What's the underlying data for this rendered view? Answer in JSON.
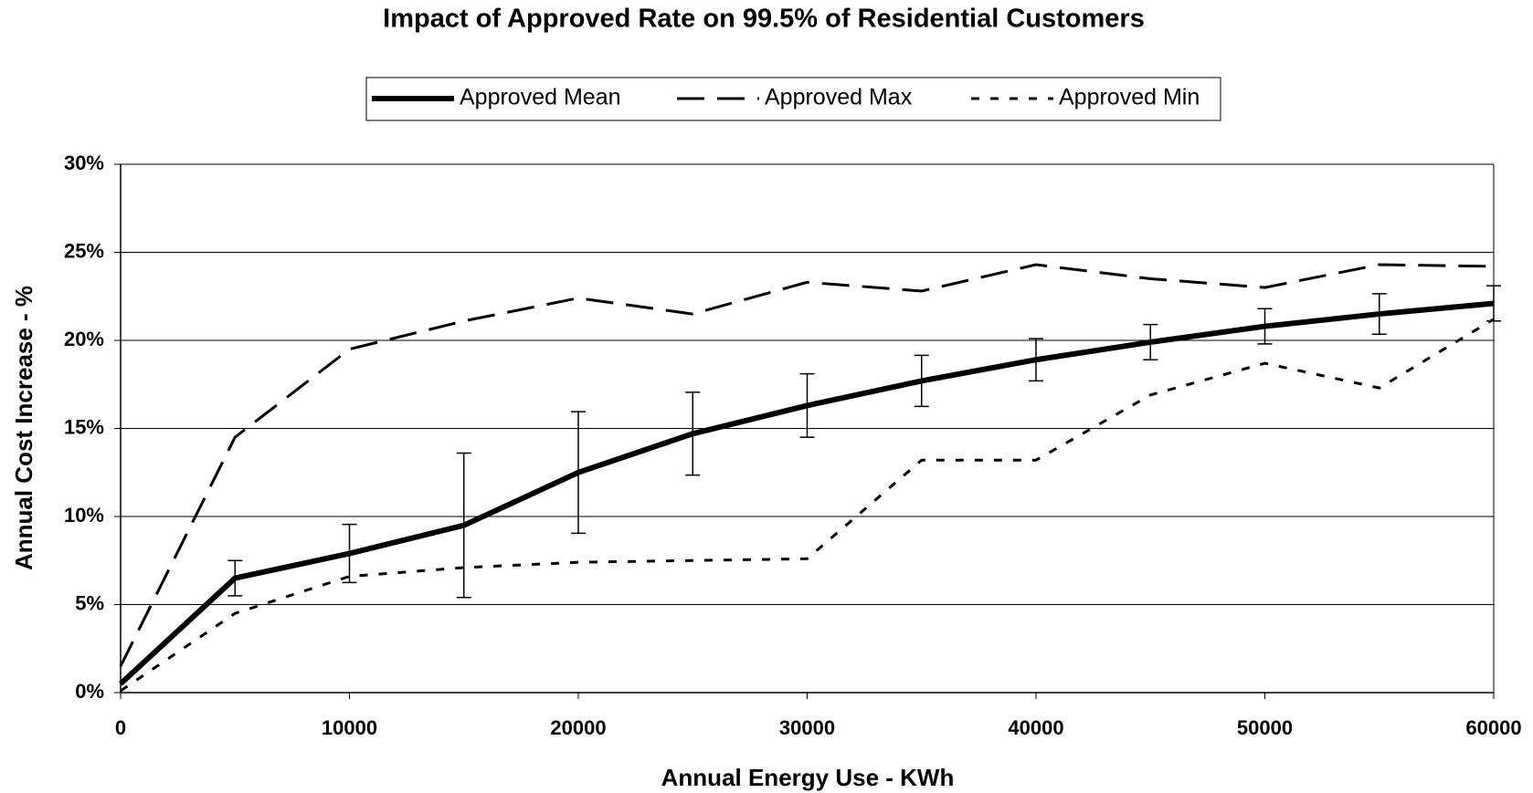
{
  "chart_data": {
    "type": "line",
    "title": "Impact of Approved Rate on 99.5% of Residential Customers",
    "x_label": "Annual Energy Use - KWh",
    "y_label": "Annual Cost Increase - %",
    "x": [
      0,
      5000,
      10000,
      15000,
      20000,
      25000,
      30000,
      35000,
      40000,
      45000,
      50000,
      55000,
      60000
    ],
    "series": [
      {
        "name": "Approved Mean",
        "color": "#000000",
        "dash": "solid",
        "values": [
          0.5,
          6.5,
          7.9,
          9.5,
          12.5,
          14.7,
          16.3,
          17.7,
          18.9,
          19.9,
          20.8,
          21.5,
          22.1
        ],
        "errors": [
          null,
          1.0,
          1.65,
          4.1,
          3.45,
          2.35,
          1.8,
          1.45,
          1.2,
          1.0,
          1.0,
          1.15,
          1.0
        ]
      },
      {
        "name": "Approved Max",
        "color": "#000000",
        "dash": "dashed",
        "values": [
          1.5,
          14.5,
          19.5,
          21.1,
          22.4,
          21.5,
          23.3,
          22.8,
          24.3,
          23.5,
          23.0,
          24.3,
          24.2
        ]
      },
      {
        "name": "Approved Min",
        "color": "#000000",
        "dash": "dotted",
        "values": [
          0.1,
          4.5,
          6.6,
          7.1,
          7.4,
          7.5,
          7.6,
          13.2,
          13.2,
          16.9,
          18.7,
          17.3,
          21.2
        ]
      }
    ],
    "xlim": [
      0,
      60000
    ],
    "xticks": [
      0,
      10000,
      20000,
      30000,
      40000,
      50000,
      60000
    ],
    "ylim": [
      0,
      30
    ],
    "yticks": [
      {
        "value": 0,
        "label": "0%"
      },
      {
        "value": 5,
        "label": "5%"
      },
      {
        "value": 10,
        "label": "10%"
      },
      {
        "value": 15,
        "label": "15%"
      },
      {
        "value": 20,
        "label": "20%"
      },
      {
        "value": 25,
        "label": "25%"
      },
      {
        "value": 30,
        "label": "30%"
      }
    ],
    "grid": true,
    "legend": "top"
  }
}
